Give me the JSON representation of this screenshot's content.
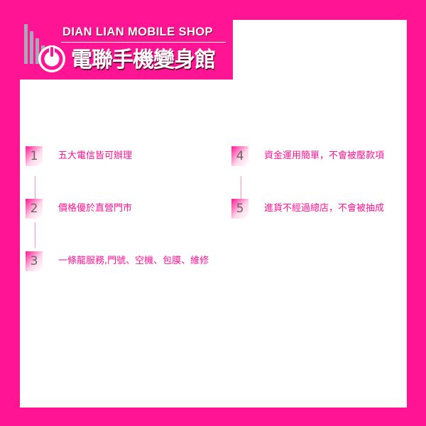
{
  "header": {
    "brand_en": "DIAN LIAN MOBILE SHOP",
    "brand_zh": "電聯手機變身館",
    "logo_icon": "power-s-logo-icon"
  },
  "colors": {
    "background": "#ff1493",
    "panel": "#ffffff",
    "accent": "#ff1493",
    "number": "#666666"
  },
  "features": [
    {
      "number": "1",
      "text": "五大電信皆可辦理"
    },
    {
      "number": "2",
      "text": "價格優於直營門市"
    },
    {
      "number": "3",
      "text": "一條龍服務,門號、空機、包膜、維修"
    },
    {
      "number": "4",
      "text": "資金運用簡單，不會被壓款項"
    },
    {
      "number": "5",
      "text": "進貨不經過總店，不會被抽成"
    }
  ]
}
